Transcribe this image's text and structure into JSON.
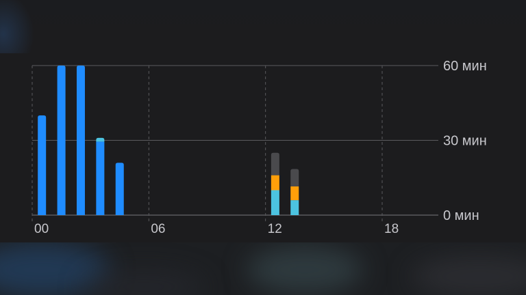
{
  "chart_data": {
    "type": "bar",
    "x_tick_labels": [
      "00",
      "06",
      "12",
      "18"
    ],
    "y_tick_labels": [
      "60 мин",
      "30 мин",
      "0 мин"
    ],
    "y_ticks": [
      60,
      30,
      0
    ],
    "ylim": [
      0,
      60
    ],
    "hours": [
      0,
      1,
      2,
      3,
      4,
      12,
      13
    ],
    "grid": true,
    "series": [
      {
        "color": "#1f8cff",
        "values": [
          40,
          60,
          60,
          29.5,
          21,
          0,
          0
        ]
      },
      {
        "color": "#4cc3e0",
        "values": [
          0,
          0,
          0,
          1.5,
          0,
          10,
          6
        ]
      },
      {
        "color": "#ff9f0a",
        "values": [
          0,
          0,
          0,
          0,
          0,
          6,
          5.5
        ]
      },
      {
        "color": "#4a4a4d",
        "values": [
          0,
          0,
          0,
          0,
          0,
          9,
          7
        ]
      }
    ],
    "colors": {
      "background": "#1c1c1e",
      "gridline": "#5a5a5e",
      "axis_text": "#c7c7cc"
    }
  }
}
